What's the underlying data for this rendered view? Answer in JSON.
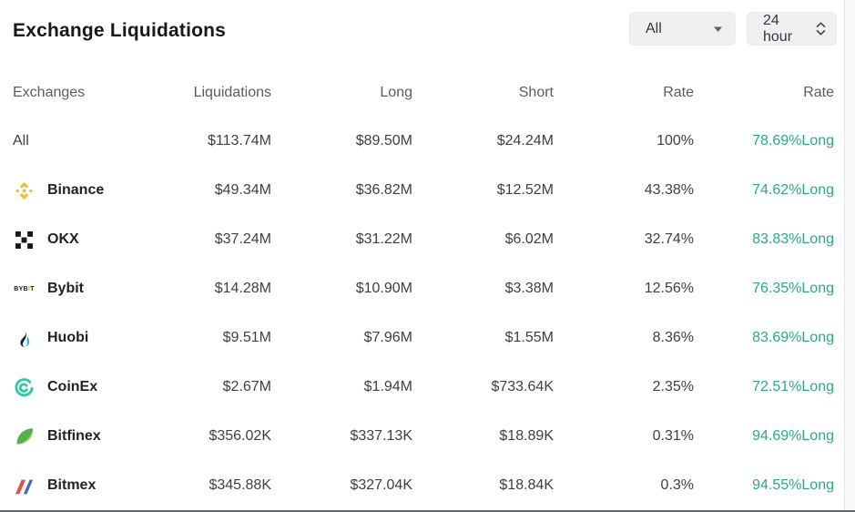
{
  "panel": {
    "title": "Exchange Liquidations",
    "filters": {
      "exchange_filter": {
        "value": "All"
      },
      "time_filter": {
        "value": "24 hour"
      }
    }
  },
  "table": {
    "columns": [
      "Exchanges",
      "Liquidations",
      "Long",
      "Short",
      "Rate",
      "Rate"
    ],
    "rows": [
      {
        "exchange": "All",
        "icon": "none",
        "liquidations": "$113.74M",
        "long": "$89.50M",
        "short": "$24.24M",
        "rate": "100%",
        "long_rate": "78.69%Long"
      },
      {
        "exchange": "Binance",
        "icon": "binance",
        "liquidations": "$49.34M",
        "long": "$36.82M",
        "short": "$12.52M",
        "rate": "43.38%",
        "long_rate": "74.62%Long"
      },
      {
        "exchange": "OKX",
        "icon": "okx",
        "liquidations": "$37.24M",
        "long": "$31.22M",
        "short": "$6.02M",
        "rate": "32.74%",
        "long_rate": "83.83%Long"
      },
      {
        "exchange": "Bybit",
        "icon": "bybit",
        "liquidations": "$14.28M",
        "long": "$10.90M",
        "short": "$3.38M",
        "rate": "12.56%",
        "long_rate": "76.35%Long"
      },
      {
        "exchange": "Huobi",
        "icon": "huobi",
        "liquidations": "$9.51M",
        "long": "$7.96M",
        "short": "$1.55M",
        "rate": "8.36%",
        "long_rate": "83.69%Long"
      },
      {
        "exchange": "CoinEx",
        "icon": "coinex",
        "liquidations": "$2.67M",
        "long": "$1.94M",
        "short": "$733.64K",
        "rate": "2.35%",
        "long_rate": "72.51%Long"
      },
      {
        "exchange": "Bitfinex",
        "icon": "bitfinex",
        "liquidations": "$356.02K",
        "long": "$337.13K",
        "short": "$18.89K",
        "rate": "0.31%",
        "long_rate": "94.69%Long"
      },
      {
        "exchange": "Bitmex",
        "icon": "bitmex",
        "liquidations": "$345.88K",
        "long": "$327.04K",
        "short": "$18.84K",
        "rate": "0.3%",
        "long_rate": "94.55%Long"
      }
    ]
  },
  "colors": {
    "long_rate_text": "#2EA789",
    "binance_gold": "#F3BA2F",
    "okx_black": "#17181B",
    "bybit_accent": "#F7A600",
    "huobi_navy": "#1B2143",
    "huobi_blue": "#2CA6E0",
    "coinex_teal": "#31C9A2",
    "bitfinex_green": "#55B14A",
    "bitfinex_light_green": "#96D35F",
    "bitmex_red": "#E2504C",
    "bitmex_blue": "#4A67B0"
  }
}
